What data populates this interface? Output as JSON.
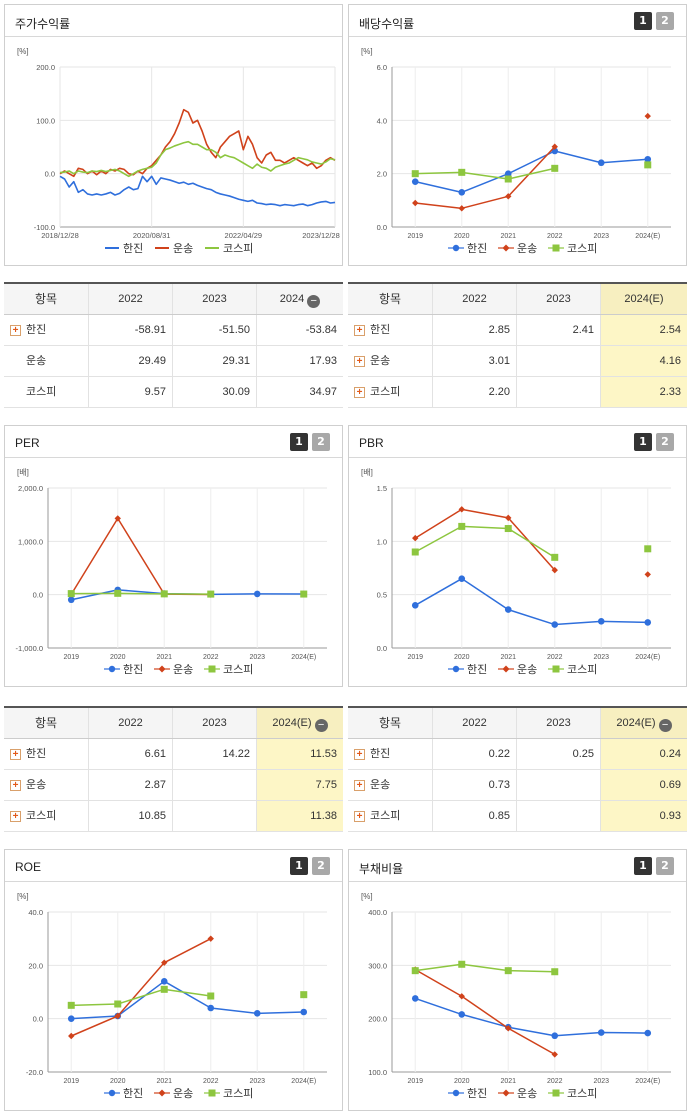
{
  "colors": {
    "hanjin": "#2f6fdc",
    "transport": "#d0421b",
    "kospi": "#8dc63f",
    "highlight": "#fdf6c6"
  },
  "pagination": {
    "p1": "1",
    "p2": "2"
  },
  "collapse_icon": "minus-circle-icon",
  "expand_icon": "plus-box-icon",
  "charts": [
    {
      "id": "stock_return",
      "title": "주가수익률",
      "show_pages": false,
      "chart_data": {
        "type": "line",
        "title": "주가수익률",
        "ylabel": "[%]",
        "ylim": [
          -100,
          200
        ],
        "yticks": [
          "200.0",
          "100.0",
          "0.0",
          "-100.0"
        ],
        "xtick_labels": [
          "2018/12/28",
          "2020/08/31",
          "2022/04/29",
          "2023/12/28"
        ],
        "x_range": [
          0,
          60
        ],
        "legend": [
          "한진",
          "운송",
          "코스피"
        ],
        "legend_position": "bottom",
        "series": [
          {
            "name": "한진",
            "key": "hanjin",
            "x": [
              0,
              1,
              2,
              3,
              4,
              5,
              6,
              7,
              8,
              9,
              10,
              11,
              12,
              13,
              14,
              15,
              16,
              17,
              18,
              19,
              20,
              21,
              22,
              23,
              24,
              25,
              26,
              27,
              28,
              29,
              30,
              31,
              32,
              33,
              34,
              35,
              36,
              37,
              38,
              39,
              40,
              41,
              42,
              43,
              44,
              45,
              46,
              47,
              48,
              49,
              50,
              51,
              52,
              53,
              54,
              55,
              56,
              57,
              58,
              59,
              60
            ],
            "values": [
              -5,
              -10,
              -25,
              -15,
              -35,
              -30,
              -38,
              -40,
              -38,
              -40,
              -38,
              -35,
              -40,
              -37,
              -30,
              -25,
              -30,
              -28,
              -5,
              -15,
              -5,
              -20,
              -8,
              -10,
              -12,
              -15,
              -18,
              -16,
              -20,
              -18,
              -22,
              -25,
              -28,
              -30,
              -35,
              -38,
              -40,
              -42,
              -45,
              -48,
              -50,
              -52,
              -50,
              -55,
              -56,
              -58,
              -57,
              -58,
              -60,
              -58,
              -59,
              -60,
              -58,
              -57,
              -60,
              -58,
              -55,
              -53,
              -52,
              -55,
              -54
            ]
          },
          {
            "name": "운송",
            "key": "transport",
            "x": [
              0,
              1,
              2,
              3,
              4,
              5,
              6,
              7,
              8,
              9,
              10,
              11,
              12,
              13,
              14,
              15,
              16,
              17,
              18,
              19,
              20,
              21,
              22,
              23,
              24,
              25,
              26,
              27,
              28,
              29,
              30,
              31,
              32,
              33,
              34,
              35,
              36,
              37,
              38,
              39,
              40,
              41,
              42,
              43,
              44,
              45,
              46,
              47,
              48,
              49,
              50,
              51,
              52,
              53,
              54,
              55,
              56,
              57,
              58,
              59,
              60
            ],
            "values": [
              0,
              5,
              0,
              -5,
              10,
              8,
              0,
              5,
              -2,
              5,
              0,
              8,
              5,
              10,
              8,
              0,
              -2,
              5,
              0,
              10,
              15,
              25,
              35,
              50,
              60,
              75,
              95,
              120,
              115,
              95,
              100,
              80,
              55,
              40,
              30,
              50,
              60,
              70,
              75,
              80,
              45,
              70,
              55,
              30,
              20,
              35,
              40,
              25,
              25,
              20,
              25,
              30,
              25,
              20,
              15,
              20,
              10,
              15,
              25,
              30,
              25
            ]
          },
          {
            "name": "코스피",
            "key": "kospi",
            "x": [
              0,
              1,
              2,
              3,
              4,
              5,
              6,
              7,
              8,
              9,
              10,
              11,
              12,
              13,
              14,
              15,
              16,
              17,
              18,
              19,
              20,
              21,
              22,
              23,
              24,
              25,
              26,
              27,
              28,
              29,
              30,
              31,
              32,
              33,
              34,
              35,
              36,
              37,
              38,
              39,
              40,
              41,
              42,
              43,
              44,
              45,
              46,
              47,
              48,
              49,
              50,
              51,
              52,
              53,
              54,
              55,
              56,
              57,
              58,
              59,
              60
            ],
            "values": [
              2,
              3,
              5,
              0,
              5,
              3,
              2,
              5,
              4,
              6,
              4,
              6,
              8,
              5,
              0,
              -5,
              0,
              5,
              8,
              10,
              12,
              20,
              35,
              45,
              48,
              52,
              55,
              58,
              60,
              55,
              55,
              50,
              45,
              45,
              40,
              30,
              35,
              32,
              30,
              25,
              20,
              15,
              10,
              18,
              12,
              10,
              5,
              12,
              15,
              18,
              20,
              25,
              30,
              28,
              26,
              22,
              20,
              18,
              22,
              28,
              26
            ]
          }
        ]
      },
      "legend_labels": [
        "한진",
        "운송",
        "코스피"
      ]
    },
    {
      "id": "dividend",
      "title": "배당수익률",
      "show_pages": true,
      "chart_data": {
        "type": "line",
        "title": "배당수익률",
        "ylabel": "[%]",
        "ylim": [
          0,
          6
        ],
        "yticks": [
          "6.0",
          "4.0",
          "2.0",
          "0.0"
        ],
        "categories": [
          "2019",
          "2020",
          "2021",
          "2022",
          "2023",
          "2024(E)"
        ],
        "legend": [
          "한진",
          "운송",
          "코스피"
        ],
        "legend_position": "bottom",
        "series": [
          {
            "name": "한진",
            "key": "hanjin",
            "values": [
              1.7,
              1.3,
              2.0,
              2.85,
              2.41,
              2.54
            ]
          },
          {
            "name": "운송",
            "key": "transport",
            "values": [
              0.9,
              0.7,
              1.15,
              3.01,
              null,
              4.16
            ]
          },
          {
            "name": "코스피",
            "key": "kospi",
            "values": [
              2.0,
              2.05,
              1.8,
              2.2,
              null,
              2.33
            ]
          }
        ]
      },
      "legend_labels": [
        "한진",
        "운송",
        "코스피"
      ]
    },
    {
      "id": "per",
      "title": "PER",
      "show_pages": true,
      "chart_data": {
        "type": "line",
        "title": "PER",
        "ylabel": "[배]",
        "ylim": [
          -1000,
          2000
        ],
        "yticks": [
          "2,000.0",
          "1,000.0",
          "0.0",
          "-1,000.0"
        ],
        "categories": [
          "2019",
          "2020",
          "2021",
          "2022",
          "2023",
          "2024(E)"
        ],
        "legend": [
          "한진",
          "운송",
          "코스피"
        ],
        "legend_position": "bottom",
        "series": [
          {
            "name": "한진",
            "key": "hanjin",
            "values": [
              -95,
              90,
              20,
              6.61,
              14.22,
              11.53
            ]
          },
          {
            "name": "운송",
            "key": "transport",
            "values": [
              5,
              1430,
              10,
              2.87,
              null,
              7.75
            ]
          },
          {
            "name": "코스피",
            "key": "kospi",
            "values": [
              20,
              25,
              15,
              10.85,
              null,
              11.38
            ]
          }
        ]
      },
      "legend_labels": [
        "한진",
        "운송",
        "코스피"
      ]
    },
    {
      "id": "pbr",
      "title": "PBR",
      "show_pages": true,
      "chart_data": {
        "type": "line",
        "title": "PBR",
        "ylabel": "[배]",
        "ylim": [
          0,
          1.5
        ],
        "yticks": [
          "1.5",
          "1.0",
          "0.5",
          "0.0"
        ],
        "categories": [
          "2019",
          "2020",
          "2021",
          "2022",
          "2023",
          "2024(E)"
        ],
        "legend": [
          "한진",
          "운송",
          "코스피"
        ],
        "legend_position": "bottom",
        "series": [
          {
            "name": "한진",
            "key": "hanjin",
            "values": [
              0.4,
              0.65,
              0.36,
              0.22,
              0.25,
              0.24
            ]
          },
          {
            "name": "운송",
            "key": "transport",
            "values": [
              1.03,
              1.3,
              1.22,
              0.73,
              null,
              0.69
            ]
          },
          {
            "name": "코스피",
            "key": "kospi",
            "values": [
              0.9,
              1.14,
              1.12,
              0.85,
              null,
              0.93
            ]
          }
        ]
      },
      "legend_labels": [
        "한진",
        "운송",
        "코스피"
      ]
    },
    {
      "id": "roe",
      "title": "ROE",
      "show_pages": true,
      "chart_data": {
        "type": "line",
        "title": "ROE",
        "ylabel": "[%]",
        "ylim": [
          -20,
          40
        ],
        "yticks": [
          "40.0",
          "20.0",
          "0.0",
          "-20.0"
        ],
        "categories": [
          "2019",
          "2020",
          "2021",
          "2022",
          "2023",
          "2024(E)"
        ],
        "legend": [
          "한진",
          "운송",
          "코스피"
        ],
        "legend_position": "bottom",
        "series": [
          {
            "name": "한진",
            "key": "hanjin",
            "values": [
              0,
              1,
              14,
              4,
              2,
              2.5
            ]
          },
          {
            "name": "운송",
            "key": "transport",
            "values": [
              -6.5,
              1,
              21,
              30,
              null,
              null
            ]
          },
          {
            "name": "코스피",
            "key": "kospi",
            "values": [
              5,
              5.5,
              11,
              8.5,
              null,
              9
            ]
          }
        ]
      },
      "legend_labels": [
        "한진",
        "운송",
        "코스피"
      ]
    },
    {
      "id": "debt",
      "title": "부채비율",
      "show_pages": true,
      "chart_data": {
        "type": "line",
        "title": "부채비율",
        "ylabel": "[%]",
        "ylim": [
          100,
          400
        ],
        "yticks": [
          "400.0",
          "300.0",
          "200.0",
          "100.0"
        ],
        "categories": [
          "2019",
          "2020",
          "2021",
          "2022",
          "2023",
          "2024(E)"
        ],
        "legend": [
          "한진",
          "운송",
          "코스피"
        ],
        "legend_position": "bottom",
        "series": [
          {
            "name": "한진",
            "key": "hanjin",
            "values": [
              238,
              208,
              184,
              168,
              174,
              173
            ]
          },
          {
            "name": "운송",
            "key": "transport",
            "values": [
              292,
              242,
              182,
              133,
              null,
              null
            ]
          },
          {
            "name": "코스피",
            "key": "kospi",
            "values": [
              290,
              302,
              290,
              288,
              null,
              null
            ]
          }
        ]
      },
      "legend_labels": [
        "한진",
        "운송",
        "코스피"
      ]
    }
  ],
  "tables": [
    {
      "id": "stock_return",
      "header": [
        "항목",
        "2022",
        "2023",
        "2024"
      ],
      "has_minus": true,
      "highlight_last": false,
      "rows": [
        {
          "label": "한진",
          "plus": true,
          "cells": [
            "-58.91",
            "-51.50",
            "-53.84"
          ]
        },
        {
          "label": "운송",
          "plus": false,
          "cells": [
            "29.49",
            "29.31",
            "17.93"
          ]
        },
        {
          "label": "코스피",
          "plus": false,
          "cells": [
            "9.57",
            "30.09",
            "34.97"
          ]
        }
      ]
    },
    {
      "id": "dividend",
      "header": [
        "항목",
        "2022",
        "2023",
        "2024(E)"
      ],
      "has_minus": false,
      "highlight_last": true,
      "rows": [
        {
          "label": "한진",
          "plus": true,
          "cells": [
            "2.85",
            "2.41",
            "2.54"
          ]
        },
        {
          "label": "운송",
          "plus": true,
          "cells": [
            "3.01",
            "",
            "4.16"
          ]
        },
        {
          "label": "코스피",
          "plus": true,
          "cells": [
            "2.20",
            "",
            "2.33"
          ]
        }
      ]
    },
    {
      "id": "per",
      "header": [
        "항목",
        "2022",
        "2023",
        "2024(E)"
      ],
      "has_minus": true,
      "highlight_last": true,
      "rows": [
        {
          "label": "한진",
          "plus": true,
          "cells": [
            "6.61",
            "14.22",
            "11.53"
          ]
        },
        {
          "label": "운송",
          "plus": true,
          "cells": [
            "2.87",
            "",
            "7.75"
          ]
        },
        {
          "label": "코스피",
          "plus": true,
          "cells": [
            "10.85",
            "",
            "11.38"
          ]
        }
      ]
    },
    {
      "id": "pbr",
      "header": [
        "항목",
        "2022",
        "2023",
        "2024(E)"
      ],
      "has_minus": true,
      "highlight_last": true,
      "rows": [
        {
          "label": "한진",
          "plus": true,
          "cells": [
            "0.22",
            "0.25",
            "0.24"
          ]
        },
        {
          "label": "운송",
          "plus": true,
          "cells": [
            "0.73",
            "",
            "0.69"
          ]
        },
        {
          "label": "코스피",
          "plus": true,
          "cells": [
            "0.85",
            "",
            "0.93"
          ]
        }
      ]
    }
  ]
}
